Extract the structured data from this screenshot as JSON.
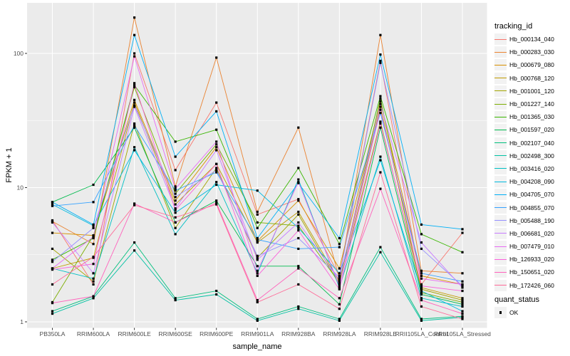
{
  "legend": {
    "tracking_title": "tracking_id",
    "quant_title": "quant_status",
    "quant_ok_label": "OK"
  },
  "chart_data": {
    "type": "line",
    "title": "",
    "xlabel": "sample_name",
    "ylabel": "FPKM + 1",
    "y_scale": "log10",
    "y_ticks": [
      1,
      10,
      100
    ],
    "y_minor": [
      3.1623,
      31.623
    ],
    "ylim": [
      0.9,
      220
    ],
    "grid": true,
    "legend_position": "right",
    "panel_bg": "#EBEBEB",
    "grid_color": "#FFFFFF",
    "tick_color": "#333333",
    "tick_label_color": "#4D4D4D",
    "point_color": "#000000",
    "categories": [
      "PB350LA",
      "RRIM600LA",
      "RRIM600LE",
      "RRIM600SE",
      "RRIM600PE",
      "RRIM901LA",
      "RRIM928BA",
      "RRIM928LA",
      "RRIM928LE",
      "RRII105LA_Control",
      "RRII105LA_Stressed"
    ],
    "series": [
      {
        "name": "Hb_000134_040",
        "color": "#F8766D",
        "values": [
          5.7,
          1.9,
          100,
          13.5,
          43,
          6.3,
          8.2,
          2.2,
          88,
          1.9,
          4.6
        ]
      },
      {
        "name": "Hb_000283_030",
        "color": "#EA8331",
        "values": [
          5.6,
          3.8,
          185,
          10.2,
          93,
          6.6,
          28,
          2.1,
          137,
          2.4,
          2.3
        ]
      },
      {
        "name": "Hb_000679_080",
        "color": "#D89000",
        "values": [
          4.6,
          4.4,
          45,
          8.0,
          20,
          4.0,
          8.0,
          2.5,
          44,
          2.2,
          1.9
        ]
      },
      {
        "name": "Hb_000768_120",
        "color": "#C09B00",
        "values": [
          2.5,
          3.0,
          43,
          7.5,
          15,
          3.9,
          6.6,
          2.0,
          40,
          1.8,
          1.5
        ]
      },
      {
        "name": "Hb_001001_120",
        "color": "#A3A500",
        "values": [
          3.5,
          2.0,
          30,
          5.0,
          14,
          3.0,
          6.3,
          1.9,
          31,
          1.75,
          1.45
        ]
      },
      {
        "name": "Hb_001227_140",
        "color": "#7CAE00",
        "values": [
          1.4,
          4.4,
          56,
          9.0,
          21,
          5.5,
          5.2,
          1.95,
          46,
          1.65,
          1.4
        ]
      },
      {
        "name": "Hb_001365_030",
        "color": "#39B600",
        "values": [
          2.9,
          4.2,
          58,
          22,
          27,
          5.0,
          14,
          3.8,
          48,
          4.5,
          3.3
        ]
      },
      {
        "name": "Hb_001597_020",
        "color": "#00BB4E",
        "values": [
          7.8,
          10.5,
          28,
          5.5,
          8.0,
          2.6,
          2.6,
          1.35,
          28,
          1.6,
          1.35
        ]
      },
      {
        "name": "Hb_002107_040",
        "color": "#00BF7D",
        "values": [
          1.2,
          1.55,
          3.9,
          1.5,
          1.7,
          1.05,
          1.3,
          1.05,
          3.6,
          1.05,
          1.1
        ]
      },
      {
        "name": "Hb_002498_300",
        "color": "#00C1A3",
        "values": [
          1.15,
          1.5,
          3.4,
          1.45,
          1.6,
          1.02,
          1.25,
          1.02,
          3.3,
          1.02,
          1.08
        ]
      },
      {
        "name": "Hb_003416_020",
        "color": "#00BFC4",
        "values": [
          2.5,
          2.1,
          20,
          4.5,
          11,
          2.3,
          11.5,
          1.8,
          17,
          1.5,
          1.3
        ]
      },
      {
        "name": "Hb_004208_090",
        "color": "#00BAE0",
        "values": [
          7.5,
          5.2,
          19,
          6.5,
          10.5,
          9.5,
          5.0,
          2.3,
          16,
          1.7,
          1.2
        ]
      },
      {
        "name": "Hb_004705_070",
        "color": "#00B0F6",
        "values": [
          7.8,
          5.3,
          137,
          17,
          37,
          4.2,
          10.8,
          4.2,
          98,
          5.3,
          4.9
        ]
      },
      {
        "name": "Hb_004855_070",
        "color": "#35A2FF",
        "values": [
          7.3,
          7.8,
          29,
          9.5,
          13,
          4.1,
          3.5,
          3.6,
          36,
          2.3,
          2.0
        ]
      },
      {
        "name": "Hb_005488_190",
        "color": "#9590FF",
        "values": [
          2.8,
          5.0,
          41,
          8.5,
          13.5,
          3.1,
          4.2,
          2.15,
          85,
          3.5,
          1.85
        ]
      },
      {
        "name": "Hb_006681_020",
        "color": "#C77CFF",
        "values": [
          5.5,
          2.3,
          40,
          7.0,
          19,
          2.9,
          5.5,
          2.05,
          42,
          3.9,
          1.8
        ]
      },
      {
        "name": "Hb_007479_010",
        "color": "#E76BF3",
        "values": [
          2.5,
          4.3,
          95,
          9.8,
          22,
          2.4,
          11.0,
          1.85,
          38,
          2.1,
          1.9
        ]
      },
      {
        "name": "Hb_126933_020",
        "color": "#FA62DB",
        "values": [
          2.45,
          2.7,
          60,
          6.8,
          15,
          2.2,
          4.8,
          1.75,
          30,
          1.85,
          1.7
        ]
      },
      {
        "name": "Hb_150651_020",
        "color": "#FF62BC",
        "values": [
          1.38,
          1.55,
          7.6,
          5.5,
          7.7,
          1.45,
          2.5,
          1.5,
          9.8,
          1.45,
          1.15
        ]
      },
      {
        "name": "Hb_172426_060",
        "color": "#FF6A98",
        "values": [
          1.9,
          3.05,
          7.4,
          6.0,
          7.5,
          1.4,
          1.9,
          1.25,
          13,
          1.3,
          1.05
        ]
      }
    ]
  }
}
